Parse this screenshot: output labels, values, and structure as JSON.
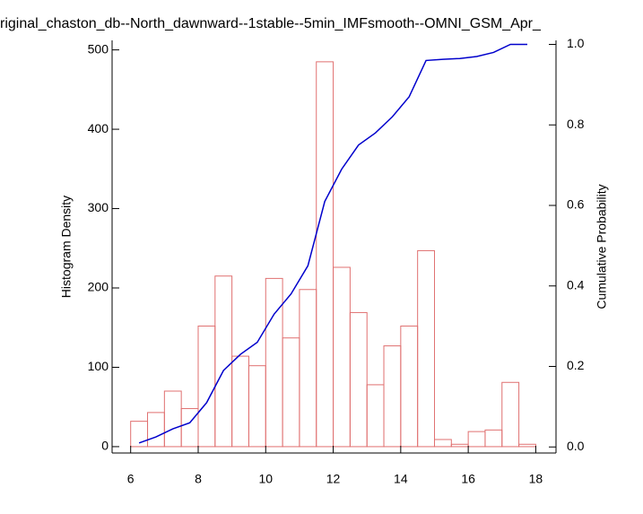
{
  "chart_data": {
    "type": "histogram",
    "title": "riginal_chaston_db--North_dawnward--1stable--5min_IMFsmooth--OMNI_GSM_Apr_",
    "ylabel": "Histogram Density",
    "y2label": "Cumulative Probability",
    "bins": [
      6.0,
      6.5,
      7.0,
      7.5,
      8.0,
      8.5,
      9.0,
      9.5,
      10.0,
      10.5,
      11.0,
      11.5,
      12.0,
      12.5,
      13.0,
      13.5,
      14.0,
      14.5,
      15.0,
      15.5,
      16.0,
      16.5,
      17.0,
      17.5,
      18.0
    ],
    "counts": [
      32,
      43,
      70,
      48,
      152,
      215,
      114,
      102,
      212,
      137,
      198,
      485,
      226,
      169,
      78,
      127,
      152,
      247,
      9,
      3,
      19,
      21,
      81,
      3
    ],
    "bar_color": "#e07070",
    "line": {
      "color": "#0000cc",
      "axis": "y2",
      "x": [
        6.25,
        6.75,
        7.25,
        7.75,
        8.25,
        8.75,
        9.25,
        9.75,
        10.25,
        10.75,
        11.25,
        11.75,
        12.25,
        12.75,
        13.25,
        13.75,
        14.25,
        14.75,
        15.25,
        15.75,
        16.25,
        16.75,
        17.25,
        17.75
      ],
      "values": [
        0.01,
        0.025,
        0.045,
        0.06,
        0.11,
        0.19,
        0.23,
        0.26,
        0.33,
        0.38,
        0.45,
        0.61,
        0.69,
        0.75,
        0.78,
        0.82,
        0.87,
        0.96,
        0.963,
        0.965,
        0.97,
        0.98,
        1.0,
        1.0
      ]
    },
    "xlim": [
      5.45,
      18.6
    ],
    "xticks": [
      6,
      8,
      10,
      12,
      14,
      16,
      18
    ],
    "ylim": [
      -8,
      512
    ],
    "yticks": [
      0,
      100,
      200,
      300,
      400,
      500
    ],
    "y2lim": [
      -0.015,
      1.01
    ],
    "y2ticks": [
      {
        "value": 0,
        "label": "0.0"
      },
      {
        "value": 0.2,
        "label": "0.2"
      },
      {
        "value": 0.4,
        "label": "0.4"
      },
      {
        "value": 0.6,
        "label": "0.6"
      },
      {
        "value": 0.8,
        "label": "0.8"
      },
      {
        "value": 1,
        "label": "1.0"
      }
    ]
  }
}
